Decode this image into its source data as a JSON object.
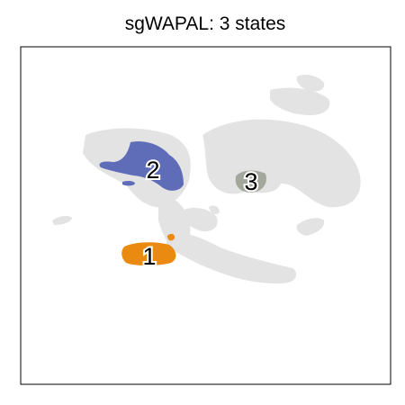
{
  "chart_data": {
    "type": "scatter",
    "title": "sgWAPAL: 3 states",
    "xlabel": "",
    "ylabel": "",
    "grid": false,
    "background_color": "#e3e3e3",
    "states": [
      {
        "name": "1",
        "color": "#ea8a10"
      },
      {
        "name": "2",
        "color": "#5f6cb8"
      },
      {
        "name": "3",
        "color": "#a3a89c"
      }
    ]
  }
}
